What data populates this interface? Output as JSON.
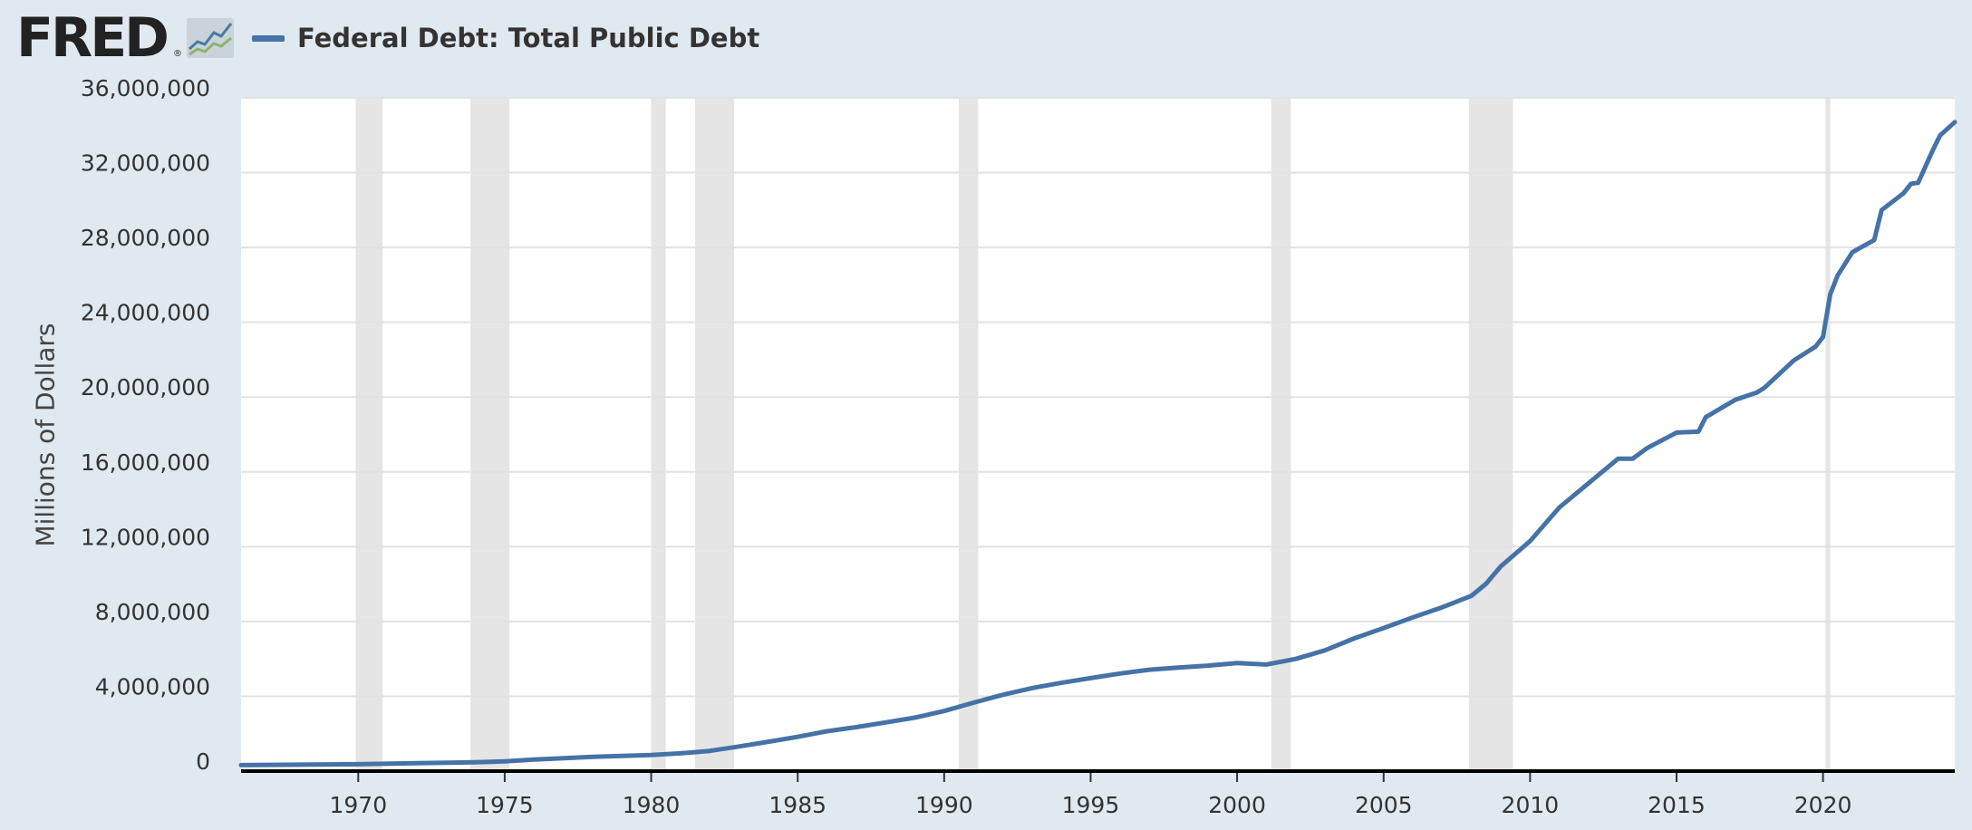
{
  "header": {
    "logo_text": "FRED",
    "logo_mark": "®",
    "legend": {
      "label": "Federal Debt: Total Public Debt",
      "color": "#4572a7"
    }
  },
  "chart_data": {
    "type": "line",
    "title": "",
    "xlabel": "",
    "ylabel": "Millions of Dollars",
    "xlim": [
      "1966-01-01",
      "2024-07-01"
    ],
    "ylim": [
      0,
      36000000
    ],
    "y_ticks": [
      0,
      4000000,
      8000000,
      12000000,
      16000000,
      20000000,
      24000000,
      28000000,
      32000000,
      36000000
    ],
    "y_tick_labels": [
      "0",
      "4,000,000",
      "8,000,000",
      "12,000,000",
      "16,000,000",
      "20,000,000",
      "24,000,000",
      "28,000,000",
      "32,000,000",
      "36,000,000"
    ],
    "x_ticks": [
      "1970",
      "1975",
      "1980",
      "1985",
      "1990",
      "1995",
      "2000",
      "2005",
      "2010",
      "2015",
      "2020"
    ],
    "grid": true,
    "recessions": [
      [
        "1969-12-01",
        "1970-11-01"
      ],
      [
        "1973-11-01",
        "1975-03-01"
      ],
      [
        "1980-01-01",
        "1980-07-01"
      ],
      [
        "1981-07-01",
        "1982-11-01"
      ],
      [
        "1990-07-01",
        "1991-03-01"
      ],
      [
        "2001-03-01",
        "2001-11-01"
      ],
      [
        "2007-12-01",
        "2009-06-01"
      ],
      [
        "2020-02-01",
        "2020-04-01"
      ]
    ],
    "series": [
      {
        "name": "Federal Debt: Total Public Debt",
        "color": "#4572a7",
        "x": [
          "1966-01-01",
          "1968-01-01",
          "1970-01-01",
          "1972-01-01",
          "1974-01-01",
          "1975-01-01",
          "1976-01-01",
          "1978-01-01",
          "1980-01-01",
          "1981-01-01",
          "1982-01-01",
          "1983-01-01",
          "1984-01-01",
          "1985-01-01",
          "1986-01-01",
          "1987-01-01",
          "1988-01-01",
          "1989-01-01",
          "1990-01-01",
          "1991-01-01",
          "1992-01-01",
          "1993-01-01",
          "1994-01-01",
          "1995-01-01",
          "1996-01-01",
          "1997-01-01",
          "1998-01-01",
          "1999-01-01",
          "2000-01-01",
          "2001-01-01",
          "2002-01-01",
          "2003-01-01",
          "2004-01-01",
          "2005-01-01",
          "2006-01-01",
          "2007-01-01",
          "2008-01-01",
          "2008-07-01",
          "2009-01-01",
          "2010-01-01",
          "2011-01-01",
          "2012-01-01",
          "2013-01-01",
          "2013-07-01",
          "2014-01-01",
          "2015-01-01",
          "2015-10-01",
          "2016-01-01",
          "2017-01-01",
          "2017-10-01",
          "2018-01-01",
          "2019-01-01",
          "2019-10-01",
          "2020-01-01",
          "2020-04-01",
          "2020-07-01",
          "2021-01-01",
          "2021-10-01",
          "2022-01-01",
          "2022-10-01",
          "2023-01-01",
          "2023-04-01",
          "2023-10-01",
          "2024-01-01",
          "2024-07-01"
        ],
        "values": [
          320000,
          345000,
          370000,
          425000,
          470000,
          520000,
          620000,
          760000,
          860000,
          950000,
          1080000,
          1320000,
          1570000,
          1830000,
          2130000,
          2350000,
          2600000,
          2860000,
          3210000,
          3660000,
          4080000,
          4440000,
          4720000,
          4970000,
          5220000,
          5420000,
          5540000,
          5640000,
          5780000,
          5700000,
          6000000,
          6460000,
          7100000,
          7650000,
          8220000,
          8760000,
          9370000,
          10020000,
          10950000,
          12300000,
          14100000,
          15400000,
          16700000,
          16700000,
          17280000,
          18100000,
          18150000,
          18930000,
          19850000,
          20250000,
          20500000,
          21960000,
          22700000,
          23220000,
          25500000,
          26500000,
          27750000,
          28400000,
          30000000,
          30900000,
          31400000,
          31460000,
          33200000,
          34000000,
          34700000
        ]
      }
    ]
  }
}
